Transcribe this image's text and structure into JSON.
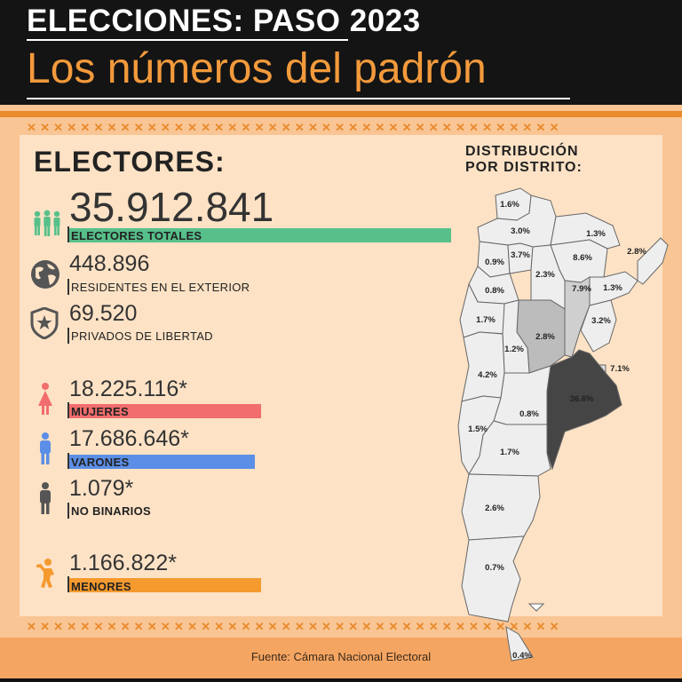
{
  "header": {
    "kicker": "ELECCIONES: PASO 2023",
    "headline": "Los números del padrón"
  },
  "decor": {
    "crosses": "✕✕✕✕✕✕✕✕✕✕✕✕✕✕✕✕✕✕✕✕✕✕✕✕✕✕✕✕✕✕✕✕✕✕✕✕✕✕✕✕"
  },
  "section_title": "ELECTORES:",
  "stats": {
    "total": {
      "value": "35.912.841",
      "label": "ELECTORES TOTALES",
      "icon": "people-group-icon",
      "color": "#57c08a"
    },
    "exterior": {
      "value": "448.896",
      "label": "RESIDENTES EN EL EXTERIOR",
      "icon": "globe-icon"
    },
    "privados": {
      "value": "69.520",
      "label": "PRIVADOS DE LIBERTAD",
      "icon": "police-badge-icon"
    },
    "mujeres": {
      "value": "18.225.116*",
      "label": "MUJERES",
      "icon": "woman-icon",
      "color": "#f26d6d"
    },
    "varones": {
      "value": "17.686.646*",
      "label": "VARONES",
      "icon": "man-icon",
      "color": "#5b8ee6"
    },
    "nobinarios": {
      "value": "1.079*",
      "label": "NO BINARIOS",
      "icon": "person-icon"
    },
    "menores": {
      "value": "1.166.822*",
      "label": "MENORES",
      "icon": "child-icon",
      "color": "#f59a2f"
    }
  },
  "map": {
    "title_line1": "DISTRIBUCIÓN",
    "title_line2": "POR DISTRITO:",
    "districts": [
      {
        "name": "jujuy",
        "pct": "1.6%",
        "fill": "#eeeeee"
      },
      {
        "name": "salta",
        "pct": "3.0%",
        "fill": "#eeeeee"
      },
      {
        "name": "formosa",
        "pct": "1.3%",
        "fill": "#eeeeee"
      },
      {
        "name": "misiones",
        "pct": "2.8%",
        "fill": "#eeeeee"
      },
      {
        "name": "catamarca",
        "pct": "0.9%",
        "fill": "#eeeeee"
      },
      {
        "name": "tucuman",
        "pct": "3.7%",
        "fill": "#eeeeee"
      },
      {
        "name": "chaco",
        "pct": "8.6%",
        "fill": "#eeeeee"
      },
      {
        "name": "santiago",
        "pct": "2.3%",
        "fill": "#eeeeee"
      },
      {
        "name": "la-rioja",
        "pct": "0.8%",
        "fill": "#eeeeee"
      },
      {
        "name": "santa-fe",
        "pct": "7.9%",
        "fill": "#cfcfcf"
      },
      {
        "name": "corrientes",
        "pct": "1.3%",
        "fill": "#eeeeee"
      },
      {
        "name": "san-juan",
        "pct": "1.7%",
        "fill": "#eeeeee"
      },
      {
        "name": "cordoba",
        "pct": "2.8%",
        "fill": "#bcbcbc"
      },
      {
        "name": "entre-rios",
        "pct": "3.2%",
        "fill": "#eeeeee"
      },
      {
        "name": "san-luis",
        "pct": "1.2%",
        "fill": "#eeeeee"
      },
      {
        "name": "caba",
        "pct": "7.1%",
        "fill": "#dddddd"
      },
      {
        "name": "mendoza",
        "pct": "4.2%",
        "fill": "#eeeeee"
      },
      {
        "name": "buenos-aires",
        "pct": "36.6%",
        "fill": "#454545"
      },
      {
        "name": "la-pampa",
        "pct": "0.8%",
        "fill": "#eeeeee"
      },
      {
        "name": "neuquen",
        "pct": "1.5%",
        "fill": "#eeeeee"
      },
      {
        "name": "rio-negro",
        "pct": "1.7%",
        "fill": "#eeeeee"
      },
      {
        "name": "chubut",
        "pct": "2.6%",
        "fill": "#eeeeee"
      },
      {
        "name": "santa-cruz",
        "pct": "0.7%",
        "fill": "#eeeeee"
      },
      {
        "name": "tierra-del-fuego",
        "pct": "0.4%",
        "fill": "#eeeeee"
      }
    ]
  },
  "footer": {
    "source": "Fuente: Cámara Nacional Electoral"
  }
}
